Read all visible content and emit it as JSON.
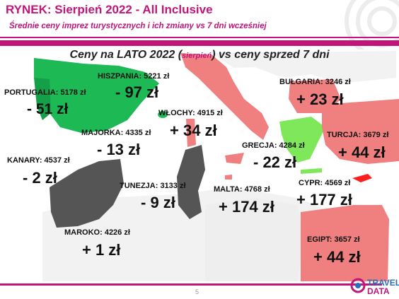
{
  "header": {
    "title": "RYNEK: Sierpień 2022 - All Inclusive",
    "subtitle": "Średnie ceny imprez turystycznych i ich zmiany vs 7 dni wcześniej"
  },
  "chart": {
    "heading_main": "Ceny na LATO 2022 (",
    "heading_small": "sierpień",
    "heading_end": ") vs ceny sprzed 7 dni"
  },
  "destinations": [
    {
      "id": "portugalia",
      "label": "PORTUGALIA: 5178 zł",
      "change": "- 51 zł",
      "status": "decrease"
    },
    {
      "id": "hiszpania",
      "label": "HISZPANIA: 5221 zł",
      "change": "- 97 zł",
      "status": "decrease"
    },
    {
      "id": "majorka",
      "label": "MAJORKA: 4335 zł",
      "change": "- 13 zł",
      "status": "decrease"
    },
    {
      "id": "kanary",
      "label": "KANARY: 4537 zł",
      "change": "- 2 zł",
      "status": "decrease"
    },
    {
      "id": "wlochy",
      "label": "WŁOCHY: 4915 zł",
      "change": "+ 34 zł",
      "status": "increase"
    },
    {
      "id": "bulgaria",
      "label": "BUŁGARIA: 3246 zł",
      "change": "+ 23 zł",
      "status": "increase"
    },
    {
      "id": "turcja",
      "label": "TURCJA: 3679 zł",
      "change": "+ 44 zł",
      "status": "increase"
    },
    {
      "id": "grecja",
      "label": "GRECJA: 4284 zł",
      "change": "- 22 zł",
      "status": "decrease"
    },
    {
      "id": "tunezja",
      "label": "TUNEZJA: 3133 zł",
      "change": "- 9 zł",
      "status": "decrease"
    },
    {
      "id": "malta",
      "label": "MALTA: 4768 zł",
      "change": "+ 174 zł",
      "status": "increase"
    },
    {
      "id": "cypr",
      "label": "CYPR: 4569 zł",
      "change": "+ 177 zł",
      "status": "increase"
    },
    {
      "id": "maroko",
      "label": "MAROKO: 4226 zł",
      "change": "+ 1 zł",
      "status": "increase"
    },
    {
      "id": "egipt",
      "label": "EGIPT: 3657 zł",
      "change": "+ 44 zł",
      "status": "increase"
    }
  ],
  "footer": {
    "page_number": "5",
    "logo_text_top": "TRAVEL",
    "logo_text_bottom": "DATA"
  },
  "colors": {
    "brand": "#c0157a",
    "decrease": "#1db954",
    "increase": "#f08080",
    "neutral": "#555555"
  }
}
